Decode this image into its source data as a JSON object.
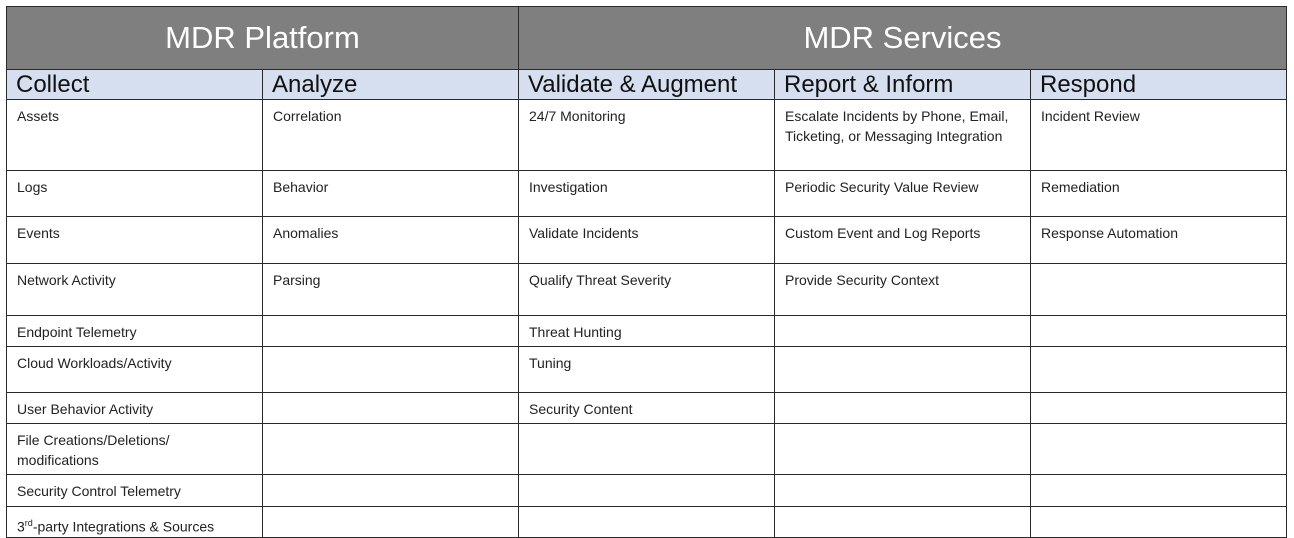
{
  "groups": [
    {
      "label": "MDR Platform"
    },
    {
      "label": "MDR Services"
    }
  ],
  "columns": [
    "Collect",
    "Analyze",
    "Validate & Augment",
    "Report & Inform",
    "Respond"
  ],
  "rows": [
    [
      "Assets",
      "Correlation",
      "24/7 Monitoring",
      "Escalate Incidents by Phone, Email, Ticketing, or Messaging Integration",
      "Incident Review"
    ],
    [
      "Logs",
      "Behavior",
      "Investigation",
      "Periodic Security Value Review",
      "Remediation"
    ],
    [
      "Events",
      "Anomalies",
      "Validate Incidents",
      "Custom Event and Log Reports",
      "Response Automation"
    ],
    [
      "Network Activity",
      "Parsing",
      "Qualify Threat Severity",
      "Provide Security Context",
      ""
    ],
    [
      "Endpoint Telemetry",
      "",
      "Threat Hunting",
      "",
      ""
    ],
    [
      "Cloud Workloads/Activity",
      "",
      "Tuning",
      "",
      ""
    ],
    [
      "User Behavior Activity",
      "",
      "Security Content",
      "",
      ""
    ],
    [
      "File Creations/Deletions/ modifications",
      "",
      "",
      "",
      ""
    ],
    [
      "Security Control Telemetry",
      "",
      "",
      "",
      ""
    ],
    [
      "3rd-party Integrations & Sources",
      "",
      "",
      "",
      ""
    ]
  ],
  "last_row_parts": {
    "num": "3",
    "sup": "rd",
    "rest": "-party Integrations & Sources"
  }
}
